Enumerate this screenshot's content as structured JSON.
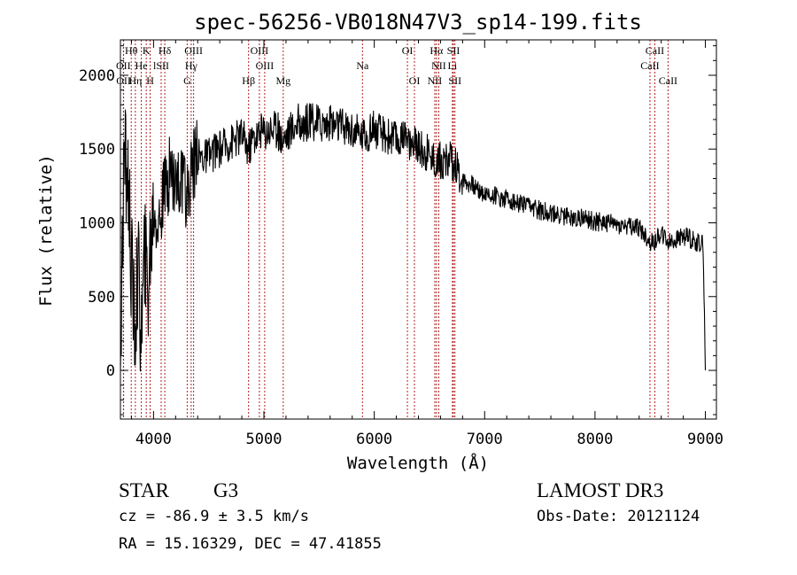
{
  "chart_data": {
    "type": "line",
    "title": "spec-56256-VB018N47V3_sp14-199.fits",
    "xlabel": "Wavelength (Å)",
    "ylabel": "Flux (relative)",
    "xlim": [
      3700,
      9100
    ],
    "ylim": [
      -330,
      2240
    ],
    "xticks": [
      4000,
      5000,
      6000,
      7000,
      8000,
      9000
    ],
    "xtick_labels": [
      "4000",
      "5000",
      "6000",
      "7000",
      "8000",
      "9000"
    ],
    "yticks": [
      0,
      500,
      1000,
      1500,
      2000
    ],
    "ytick_labels": [
      "0",
      "500",
      "1000",
      "1500",
      "2000"
    ],
    "series": [
      {
        "name": "flux",
        "anchors": [
          [
            3700,
            0
          ],
          [
            3730,
            1450
          ],
          [
            3770,
            1300
          ],
          [
            3800,
            700
          ],
          [
            3830,
            300
          ],
          [
            3860,
            700
          ],
          [
            3890,
            250
          ],
          [
            3920,
            750
          ],
          [
            3950,
            550
          ],
          [
            3970,
            850
          ],
          [
            4000,
            1100
          ],
          [
            4050,
            1000
          ],
          [
            4100,
            1200
          ],
          [
            4150,
            1350
          ],
          [
            4200,
            1300
          ],
          [
            4250,
            1250
          ],
          [
            4300,
            1150
          ],
          [
            4350,
            1400
          ],
          [
            4400,
            1450
          ],
          [
            4500,
            1450
          ],
          [
            4600,
            1500
          ],
          [
            4700,
            1550
          ],
          [
            4800,
            1600
          ],
          [
            4860,
            1500
          ],
          [
            4900,
            1580
          ],
          [
            5000,
            1620
          ],
          [
            5100,
            1650
          ],
          [
            5170,
            1570
          ],
          [
            5300,
            1680
          ],
          [
            5500,
            1680
          ],
          [
            5700,
            1660
          ],
          [
            5890,
            1600
          ],
          [
            6000,
            1630
          ],
          [
            6200,
            1570
          ],
          [
            6400,
            1520
          ],
          [
            6563,
            1420
          ],
          [
            6700,
            1420
          ],
          [
            6800,
            1300
          ],
          [
            7000,
            1200
          ],
          [
            7200,
            1160
          ],
          [
            7400,
            1110
          ],
          [
            7600,
            1060
          ],
          [
            7800,
            1040
          ],
          [
            8000,
            1010
          ],
          [
            8200,
            990
          ],
          [
            8400,
            970
          ],
          [
            8498,
            870
          ],
          [
            8542,
            880
          ],
          [
            8600,
            940
          ],
          [
            8662,
            860
          ],
          [
            8800,
            910
          ],
          [
            8900,
            880
          ],
          [
            8980,
            850
          ],
          [
            9000,
            0
          ]
        ]
      }
    ],
    "line_marks": [
      {
        "label": "Hθ",
        "wave": 3798,
        "row": 0
      },
      {
        "label": "K",
        "wave": 3934,
        "row": 0
      },
      {
        "label": "Hδ",
        "wave": 4102,
        "row": 0
      },
      {
        "label": "OIII",
        "wave": 4363,
        "row": 0
      },
      {
        "label": "OIII",
        "wave": 4959,
        "row": 0
      },
      {
        "label": "OI",
        "wave": 6300,
        "row": 0
      },
      {
        "label": "Hα",
        "wave": 6563,
        "row": 0
      },
      {
        "label": "SII",
        "wave": 6717,
        "row": 0
      },
      {
        "label": "CaII",
        "wave": 8542,
        "row": 0
      },
      {
        "label": "OII",
        "wave": 3727,
        "row": 1
      },
      {
        "label": "He",
        "wave": 3889,
        "row": 1
      },
      {
        "label": "lSII",
        "wave": 4069,
        "row": 1
      },
      {
        "label": "Hγ",
        "wave": 4341,
        "row": 1
      },
      {
        "label": "OIII",
        "wave": 5007,
        "row": 1
      },
      {
        "label": "Na",
        "wave": 5893,
        "row": 1
      },
      {
        "label": "NII",
        "wave": 6584,
        "row": 1
      },
      {
        "label": "Li",
        "wave": 6708,
        "row": 1
      },
      {
        "label": "CaII",
        "wave": 8498,
        "row": 1
      },
      {
        "label": "OII",
        "wave": 3729,
        "row": 2
      },
      {
        "label": "Hη",
        "wave": 3835,
        "row": 2
      },
      {
        "label": "H",
        "wave": 3969,
        "row": 2
      },
      {
        "label": "G",
        "wave": 4305,
        "row": 2
      },
      {
        "label": "Hβ",
        "wave": 4861,
        "row": 2
      },
      {
        "label": "Mg",
        "wave": 5175,
        "row": 2
      },
      {
        "label": "OI",
        "wave": 6364,
        "row": 2
      },
      {
        "label": "NII",
        "wave": 6548,
        "row": 2
      },
      {
        "label": "SII",
        "wave": 6731,
        "row": 2
      },
      {
        "label": "CaII",
        "wave": 8662,
        "row": 2
      }
    ]
  },
  "info": {
    "object_class": "STAR",
    "subclass": "G3",
    "cz": "cz = -86.9 ± 3.5 km/s",
    "coords": "RA =  15.16329, DEC =  47.41855",
    "survey": "LAMOST DR3",
    "obs_date": "Obs-Date: 20121124"
  },
  "colors": {
    "axis": "#000000",
    "flux_line": "#000000",
    "line_marker": "#b22222",
    "background": "#ffffff"
  }
}
